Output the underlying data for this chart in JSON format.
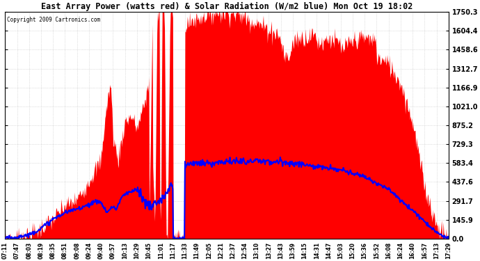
{
  "title": "East Array Power (watts red) & Solar Radiation (W/m2 blue) Mon Oct 19 18:02",
  "copyright": "Copyright 2009 Cartronics.com",
  "background_color": "#ffffff",
  "plot_bg_color": "#ffffff",
  "grid_color": "#aaaaaa",
  "ymin": 0.0,
  "ymax": 1750.3,
  "yticks": [
    0.0,
    145.9,
    291.7,
    437.6,
    583.4,
    729.3,
    875.2,
    1021.0,
    1166.9,
    1312.7,
    1458.6,
    1604.4,
    1750.3
  ],
  "x_labels": [
    "07:11",
    "07:47",
    "08:03",
    "08:19",
    "08:35",
    "08:51",
    "09:08",
    "09:24",
    "09:40",
    "09:57",
    "10:13",
    "10:29",
    "10:45",
    "11:01",
    "11:17",
    "11:33",
    "11:49",
    "12:05",
    "12:21",
    "12:37",
    "12:54",
    "13:10",
    "13:27",
    "13:43",
    "13:59",
    "14:15",
    "14:31",
    "14:47",
    "15:03",
    "15:20",
    "15:36",
    "15:52",
    "16:08",
    "16:24",
    "16:40",
    "16:57",
    "17:13",
    "17:29"
  ],
  "red_fill_color": "#ff0000",
  "blue_line_color": "#0000ff",
  "line_width": 1.5,
  "n_labels": 38
}
